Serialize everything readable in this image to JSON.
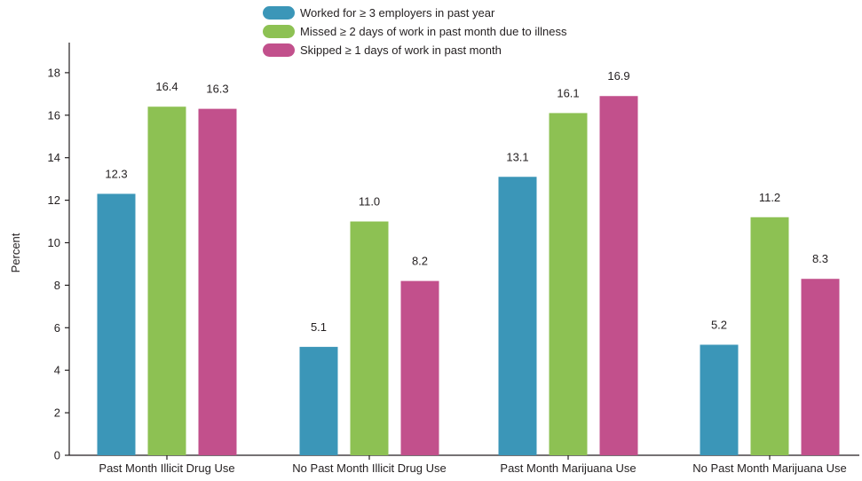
{
  "chart_data": {
    "type": "bar",
    "title": "",
    "xlabel": "",
    "ylabel": "Percent",
    "ylim": [
      0,
      19
    ],
    "yticks": [
      0,
      2,
      4,
      6,
      8,
      10,
      12,
      14,
      16,
      18
    ],
    "grid": false,
    "legend_position": "top-center",
    "categories": [
      "Past Month Illicit Drug Use",
      "No Past Month Illicit Drug Use",
      "Past Month Marijuana Use",
      "No Past Month Marijuana Use"
    ],
    "series": [
      {
        "name": "Worked for ≥ 3 employers in past year",
        "color": "#3b96b8",
        "values": [
          12.3,
          5.1,
          13.1,
          5.2
        ],
        "labels": [
          "12.3",
          "5.1",
          "13.1",
          "5.2"
        ]
      },
      {
        "name": "Missed ≥ 2 days of work in past month due to illness",
        "color": "#8dc153",
        "values": [
          16.4,
          11.0,
          16.1,
          11.2
        ],
        "labels": [
          "16.4",
          "11.0",
          "16.1",
          "11.2"
        ]
      },
      {
        "name": "Skipped ≥ 1 days of work in past month",
        "color": "#c2508c",
        "values": [
          16.3,
          8.2,
          16.9,
          8.3
        ],
        "labels": [
          "16.3",
          "8.2",
          "16.9",
          "8.3"
        ]
      }
    ]
  }
}
